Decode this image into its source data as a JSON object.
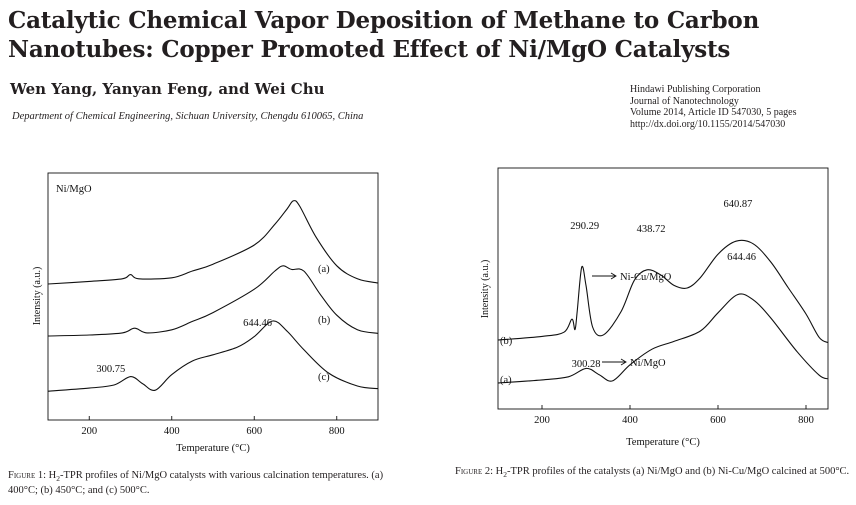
{
  "paper": {
    "title_line1": "Catalytic Chemical Vapor Deposition of Methane to Carbon",
    "title_line2": "Nanotubes: Copper Promoted Effect of Ni/MgO Catalysts",
    "authors": "Wen Yang, Yanyan Feng, and Wei Chu",
    "affiliation": "Department of Chemical Engineering, Sichuan University, Chengdu 610065, China",
    "publisher": "Hindawi Publishing Corporation",
    "journal": "Journal of Nanotechnology",
    "volume": "Volume 2014, Article ID 547030, 5 pages",
    "doi": "http://dx.doi.org/10.1155/2014/547030"
  },
  "figure1": {
    "caption_label": "Figure 1:",
    "caption_h2": "H",
    "caption_sub": "2",
    "caption_text": "-TPR profiles of Ni/MgO catalysts with various calcination temperatures. (a) 400°C; (b) 450°C; and (c) 500°C."
  },
  "figure2": {
    "caption_label": "Figure 2:",
    "caption_h2": "H",
    "caption_sub": "2",
    "caption_text": "-TPR profiles of the catalysts (a) Ni/MgO and (b) Ni-Cu/MgO calcined at 500°C."
  },
  "chart_data": [
    {
      "type": "line",
      "title": "Ni/MgO",
      "xlabel": "Temperature (°C)",
      "ylabel": "Intensity (a.u.)",
      "xlim": [
        100,
        900
      ],
      "xticks": [
        200,
        400,
        600,
        800
      ],
      "yunit": "a.u. (offset curves)",
      "series": [
        {
          "name": "(a)",
          "x": [
            100,
            200,
            280,
            300,
            320,
            400,
            450,
            500,
            600,
            650,
            680,
            695,
            710,
            750,
            800,
            850,
            900
          ],
          "y": [
            0.3,
            0.35,
            0.4,
            0.48,
            0.4,
            0.42,
            0.55,
            0.68,
            1.05,
            1.45,
            1.75,
            1.9,
            1.8,
            1.2,
            0.65,
            0.4,
            0.32
          ]
        },
        {
          "name": "(b)",
          "x": [
            100,
            200,
            280,
            310,
            340,
            400,
            450,
            500,
            600,
            650,
            670,
            690,
            720,
            760,
            800,
            850,
            900
          ],
          "y": [
            0.3,
            0.32,
            0.36,
            0.45,
            0.36,
            0.42,
            0.58,
            0.75,
            1.2,
            1.55,
            1.65,
            1.58,
            1.55,
            1.1,
            0.7,
            0.42,
            0.35
          ]
        },
        {
          "name": "(c)",
          "x": [
            100,
            200,
            260,
            300.75,
            330,
            360,
            400,
            450,
            500,
            560,
            600,
            644.46,
            680,
            720,
            780,
            850,
            900
          ],
          "y": [
            0.2,
            0.26,
            0.32,
            0.48,
            0.34,
            0.22,
            0.52,
            0.78,
            0.9,
            1.05,
            1.25,
            1.55,
            1.35,
            1.0,
            0.55,
            0.3,
            0.25
          ]
        }
      ],
      "annotations": [
        {
          "text": "300.75",
          "x": 300.75
        },
        {
          "text": "644.46",
          "x": 644.46
        },
        {
          "text": "(a)",
          "series": "(a)"
        },
        {
          "text": "(b)",
          "series": "(b)"
        },
        {
          "text": "(c)",
          "series": "(c)"
        }
      ]
    },
    {
      "type": "line",
      "title": "",
      "xlabel": "Temperature (°C)",
      "ylabel": "Intensity (a.u.)",
      "xlim": [
        100,
        850
      ],
      "xticks": [
        200,
        400,
        600,
        800
      ],
      "yunit": "a.u. (offset curves)",
      "series": [
        {
          "name": "(b)",
          "label": "Ni-Cu/MgO",
          "x": [
            100,
            200,
            250,
            268,
            275,
            280,
            290.29,
            300,
            315,
            340,
            380,
            410,
            438.72,
            470,
            500,
            530,
            560,
            600,
            640.87,
            680,
            720,
            760,
            800,
            830,
            850
          ],
          "y": [
            1.05,
            1.12,
            1.2,
            1.45,
            1.25,
            1.6,
            2.45,
            2.1,
            1.3,
            1.15,
            1.6,
            2.2,
            2.4,
            2.3,
            2.1,
            2.05,
            2.25,
            2.7,
            2.95,
            2.9,
            2.55,
            2.05,
            1.55,
            1.1,
            1.0
          ]
        },
        {
          "name": "(a)",
          "label": "Ni/MgO",
          "x": [
            100,
            200,
            260,
            300.28,
            330,
            360,
            400,
            450,
            500,
            560,
            600,
            644.46,
            680,
            720,
            780,
            830,
            850
          ],
          "y": [
            0.2,
            0.26,
            0.32,
            0.48,
            0.36,
            0.24,
            0.55,
            0.85,
            1.0,
            1.2,
            1.55,
            1.9,
            1.8,
            1.45,
            0.8,
            0.35,
            0.28
          ]
        }
      ],
      "annotations": [
        {
          "text": "290.29",
          "x": 290.29
        },
        {
          "text": "438.72",
          "x": 438.72
        },
        {
          "text": "640.87",
          "x": 640.87
        },
        {
          "text": "644.46",
          "x": 644.46
        },
        {
          "text": "300.28",
          "x": 300.28
        },
        {
          "text": "Ni-Cu/MgO",
          "series": "(b)"
        },
        {
          "text": "Ni/MgO",
          "series": "(a)"
        },
        {
          "text": "(a)",
          "series": "(a)"
        },
        {
          "text": "(b)",
          "series": "(b)"
        }
      ]
    }
  ]
}
